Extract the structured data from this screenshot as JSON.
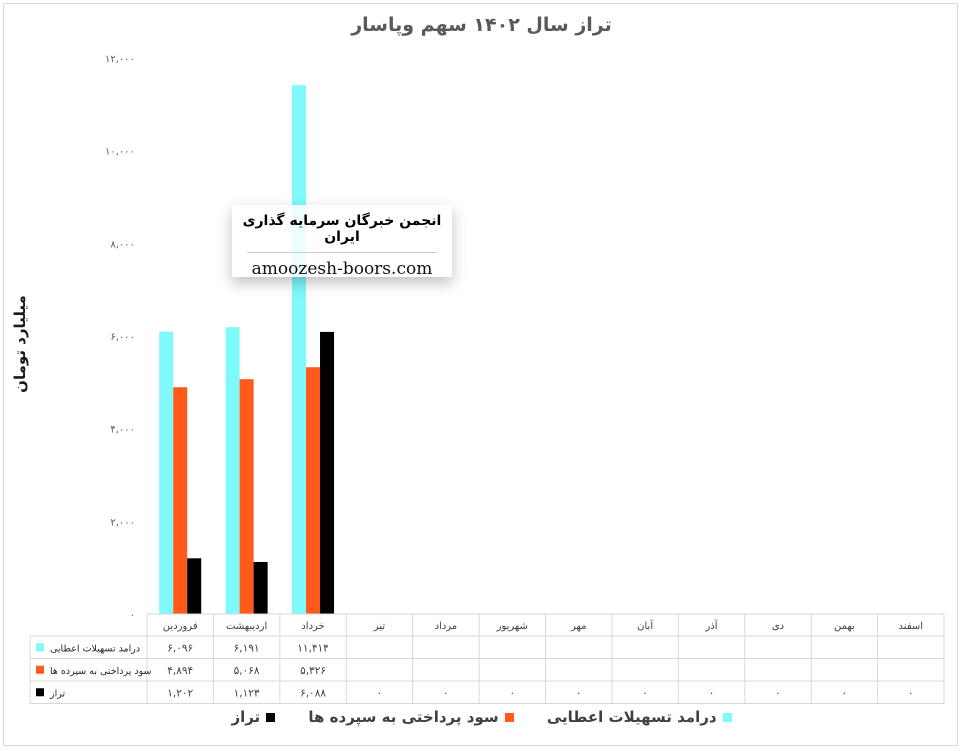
{
  "chart_data": {
    "type": "bar",
    "title": "تراز سال ۱۴۰۲ سهم وپاسار",
    "ylabel": "میلیارد تومان",
    "ylim": [
      0,
      12000
    ],
    "yticks": [
      "۰",
      "۲,۰۰۰",
      "۴,۰۰۰",
      "۶,۰۰۰",
      "۸,۰۰۰",
      "۱۰,۰۰۰",
      "۱۲,۰۰۰"
    ],
    "ytick_values": [
      0,
      2000,
      4000,
      6000,
      8000,
      10000,
      12000
    ],
    "grid": false,
    "legend_position": "bottom",
    "categories": [
      "فروردین",
      "اردیبهشت",
      "خرداد",
      "تیر",
      "مرداد",
      "شهریور",
      "مهر",
      "آبان",
      "آذر",
      "دی",
      "بهمن",
      "اسفند"
    ],
    "series": [
      {
        "name": "درامد تسهیلات اعطایی",
        "color": "#7ff9fb",
        "values": [
          6096,
          6191,
          11414,
          null,
          null,
          null,
          null,
          null,
          null,
          null,
          null,
          null
        ],
        "cells": [
          "۶,۰۹۶",
          "۶,۱۹۱",
          "۱۱,۴۱۴",
          "",
          "",
          "",
          "",
          "",
          "",
          "",
          "",
          ""
        ]
      },
      {
        "name": "سود پرداختی به سپرده ها",
        "color": "#ff5a1a",
        "values": [
          4894,
          5068,
          5326,
          null,
          null,
          null,
          null,
          null,
          null,
          null,
          null,
          null
        ],
        "cells": [
          "۴,۸۹۴",
          "۵,۰۶۸",
          "۵,۳۲۶",
          "",
          "",
          "",
          "",
          "",
          "",
          "",
          "",
          ""
        ]
      },
      {
        "name": "تراز",
        "color": "#000000",
        "values": [
          1202,
          1123,
          6088,
          0,
          0,
          0,
          0,
          0,
          0,
          0,
          0,
          0
        ],
        "cells": [
          "۱,۲۰۲",
          "۱,۱۲۳",
          "۶,۰۸۸",
          "۰",
          "۰",
          "۰",
          "۰",
          "۰",
          "۰",
          "۰",
          "۰",
          "۰"
        ]
      }
    ]
  },
  "watermark": {
    "title": "انجمن خبرگان سرمایه گذاری ایران",
    "site": "amoozesh-boors.com"
  }
}
